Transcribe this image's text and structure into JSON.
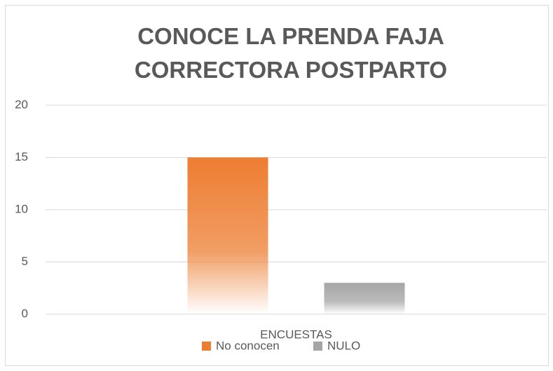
{
  "chart_data": {
    "type": "bar",
    "title": "CONOCE LA PRENDA FAJA CORRECTORA POSTPARTO",
    "categories": [
      "ENCUESTAS"
    ],
    "series": [
      {
        "name": "No conocen",
        "color": "#ed7d31",
        "values": [
          15
        ]
      },
      {
        "name": "NULO",
        "color": "#a5a5a5",
        "values": [
          3
        ]
      }
    ],
    "ylim": [
      0,
      20
    ],
    "yticks": [
      0,
      5,
      10,
      15,
      20
    ],
    "grid": true,
    "legend": "bottom"
  }
}
